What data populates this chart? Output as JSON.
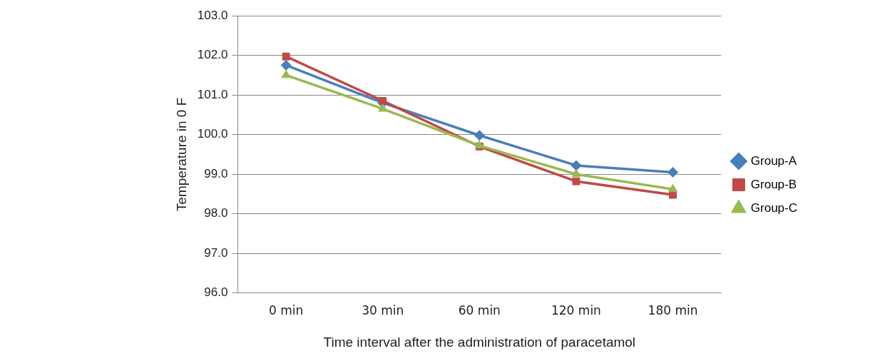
{
  "chart_data": {
    "type": "line",
    "xlabel": "Time interval after the administration of paracetamol",
    "ylabel": "Temperature in 0 F",
    "categories": [
      "0 min",
      "30 min",
      "60 min",
      "120 min",
      "180 min"
    ],
    "series": [
      {
        "name": "Group-A",
        "color": "#4a7ebb",
        "marker": "diamond",
        "values": [
          101.75,
          100.8,
          99.98,
          99.22,
          99.05
        ]
      },
      {
        "name": "Group-B",
        "color": "#be4b48",
        "marker": "square",
        "values": [
          101.97,
          100.85,
          99.7,
          98.82,
          98.48
        ]
      },
      {
        "name": "Group-C",
        "color": "#98b954",
        "marker": "triangle",
        "values": [
          101.5,
          100.65,
          99.72,
          99.0,
          98.62
        ]
      }
    ],
    "ylim": [
      96,
      103
    ],
    "yticks": [
      {
        "value": 96,
        "label": "96.0"
      },
      {
        "value": 97,
        "label": "97.0"
      },
      {
        "value": 98,
        "label": "98.0"
      },
      {
        "value": 99,
        "label": "99.0"
      },
      {
        "value": 100,
        "label": "100.0"
      },
      {
        "value": 101,
        "label": "101.0"
      },
      {
        "value": 102,
        "label": "102.0"
      },
      {
        "value": 103,
        "label": "103.0"
      }
    ],
    "grid": "y",
    "legend": "right",
    "line_style": "solid"
  }
}
